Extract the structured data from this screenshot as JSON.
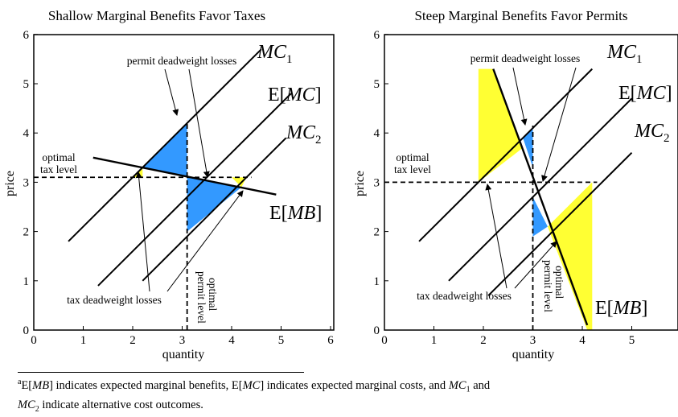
{
  "charts": [
    {
      "title": "Shallow Marginal Benefits Favor Taxes",
      "xlabel": "quantity",
      "ylabel": "price",
      "xlim": [
        0,
        6
      ],
      "ylim": [
        0,
        6
      ],
      "xticks": [
        "0",
        "1",
        "2",
        "3",
        "4",
        "5",
        "6"
      ],
      "yticks": [
        "0",
        "1",
        "2",
        "3",
        "4",
        "5",
        "6"
      ],
      "annotations": {
        "permit_dwl": "permit deadweight losses",
        "tax_dwl": "tax deadweight losses",
        "optimal_tax_1": "optimal",
        "optimal_tax_2": "tax level",
        "optimal_permit_1": "optimal",
        "optimal_permit_2": "permit level"
      },
      "curve_labels": {
        "mc1_main": "MC",
        "mc1_sub": "1",
        "emc_pre": "E[",
        "emc_main": "MC",
        "emc_post": "]",
        "mc2_main": "MC",
        "mc2_sub": "2",
        "emb_pre": "E[",
        "emb_main": "MB",
        "emb_post": "]"
      }
    },
    {
      "title": "Steep Marginal Benefits Favor Permits",
      "xlabel": "quantity",
      "ylabel": "price",
      "xlim": [
        0,
        6
      ],
      "ylim": [
        0,
        6
      ],
      "xticks": [
        "0",
        "1",
        "2",
        "3",
        "4",
        "5"
      ],
      "yticks": [
        "0",
        "1",
        "2",
        "3",
        "4",
        "5",
        "6"
      ],
      "annotations": {
        "permit_dwl": "permit deadweight losses",
        "tax_dwl": "tax deadweight losses",
        "optimal_tax_1": "optimal",
        "optimal_tax_2": "tax level",
        "optimal_permit_1": "optimal",
        "optimal_permit_2": "permit level"
      },
      "curve_labels": {
        "mc1_main": "MC",
        "mc1_sub": "1",
        "emc_pre": "E[",
        "emc_main": "MC",
        "emc_post": "]",
        "mc2_main": "MC",
        "mc2_sub": "2",
        "emb_pre": "E[",
        "emb_main": "MB",
        "emb_post": "]"
      }
    }
  ],
  "chart_data": [
    {
      "type": "line",
      "title": "Shallow Marginal Benefits Favor Taxes",
      "xlabel": "quantity",
      "ylabel": "price",
      "xlim": [
        0,
        6
      ],
      "ylim": [
        0,
        6
      ],
      "series": [
        {
          "name": "MC1",
          "x": [
            0.7,
            4.6
          ],
          "y": [
            1.8,
            5.7
          ]
        },
        {
          "name": "E[MC]",
          "x": [
            1.3,
            5.2
          ],
          "y": [
            0.9,
            4.8
          ]
        },
        {
          "name": "MC2",
          "x": [
            2.2,
            5.1
          ],
          "y": [
            1.0,
            3.9
          ]
        },
        {
          "name": "E[MB]",
          "x": [
            1.2,
            4.9
          ],
          "y": [
            3.5,
            2.75
          ]
        }
      ],
      "optimal_tax_level": 3.1,
      "optimal_permit_level": 3.1,
      "shaded_regions": [
        {
          "kind": "permit deadweight loss",
          "color": "#3399ff",
          "points": [
            [
              2.2,
              3.3
            ],
            [
              3.1,
              4.2
            ],
            [
              3.1,
              3.1
            ]
          ]
        },
        {
          "kind": "permit deadweight loss",
          "color": "#3399ff",
          "points": [
            [
              3.1,
              3.1
            ],
            [
              3.1,
              2.0
            ],
            [
              4.2,
              2.9
            ]
          ]
        },
        {
          "kind": "tax deadweight loss",
          "color": "#ffff33",
          "points": [
            [
              2.0,
              3.1
            ],
            [
              2.2,
              3.3
            ],
            [
              2.2,
              3.1
            ]
          ]
        },
        {
          "kind": "tax deadweight loss",
          "color": "#ffff33",
          "points": [
            [
              4.0,
              3.1
            ],
            [
              4.3,
              3.1
            ],
            [
              4.2,
              2.9
            ]
          ]
        }
      ]
    },
    {
      "type": "line",
      "title": "Steep Marginal Benefits Favor Permits",
      "xlabel": "quantity",
      "ylabel": "price",
      "xlim": [
        0,
        6
      ],
      "ylim": [
        0,
        6
      ],
      "series": [
        {
          "name": "MC1",
          "x": [
            0.7,
            4.2
          ],
          "y": [
            1.8,
            5.3
          ]
        },
        {
          "name": "E[MC]",
          "x": [
            1.3,
            5.0
          ],
          "y": [
            1.0,
            4.7
          ]
        },
        {
          "name": "MC2",
          "x": [
            2.1,
            5.0
          ],
          "y": [
            0.7,
            3.6
          ]
        },
        {
          "name": "E[MB]",
          "x": [
            2.2,
            4.1
          ],
          "y": [
            5.3,
            0.1
          ]
        }
      ],
      "optimal_tax_level": 3.0,
      "optimal_permit_level": 3.0,
      "shaded_regions": [
        {
          "kind": "permit deadweight loss",
          "color": "#3399ff",
          "points": [
            [
              2.8,
              3.9
            ],
            [
              3.0,
              4.1
            ],
            [
              3.0,
              3.3
            ]
          ]
        },
        {
          "kind": "permit deadweight loss",
          "color": "#3399ff",
          "points": [
            [
              3.0,
              2.7
            ],
            [
              3.0,
              1.9
            ],
            [
              3.3,
              2.1
            ]
          ]
        },
        {
          "kind": "tax deadweight loss",
          "color": "#ffff33",
          "points": [
            [
              1.9,
              5.3
            ],
            [
              2.2,
              5.3
            ],
            [
              2.8,
              3.7
            ],
            [
              1.9,
              3.0
            ]
          ]
        },
        {
          "kind": "tax deadweight loss",
          "color": "#ffff33",
          "points": [
            [
              3.3,
              2.1
            ],
            [
              4.2,
              3.0
            ],
            [
              4.2,
              0.0
            ],
            [
              4.1,
              0.0
            ]
          ]
        }
      ]
    }
  ],
  "footnote": {
    "marker": "a",
    "e1": "E[",
    "mb": "MB",
    "t1": "] indicates expected marginal benefits, E[",
    "mc": "MC",
    "t2": "] indicates expected marginal costs, and ",
    "mc1": "MC",
    "sub1": "1",
    "t3": " and",
    "mc2": "MC",
    "sub2": "2",
    "t4": " indicate alternative cost outcomes."
  },
  "colors": {
    "blue": "#3399ff",
    "yellow": "#ffff33",
    "line": "#000000"
  }
}
